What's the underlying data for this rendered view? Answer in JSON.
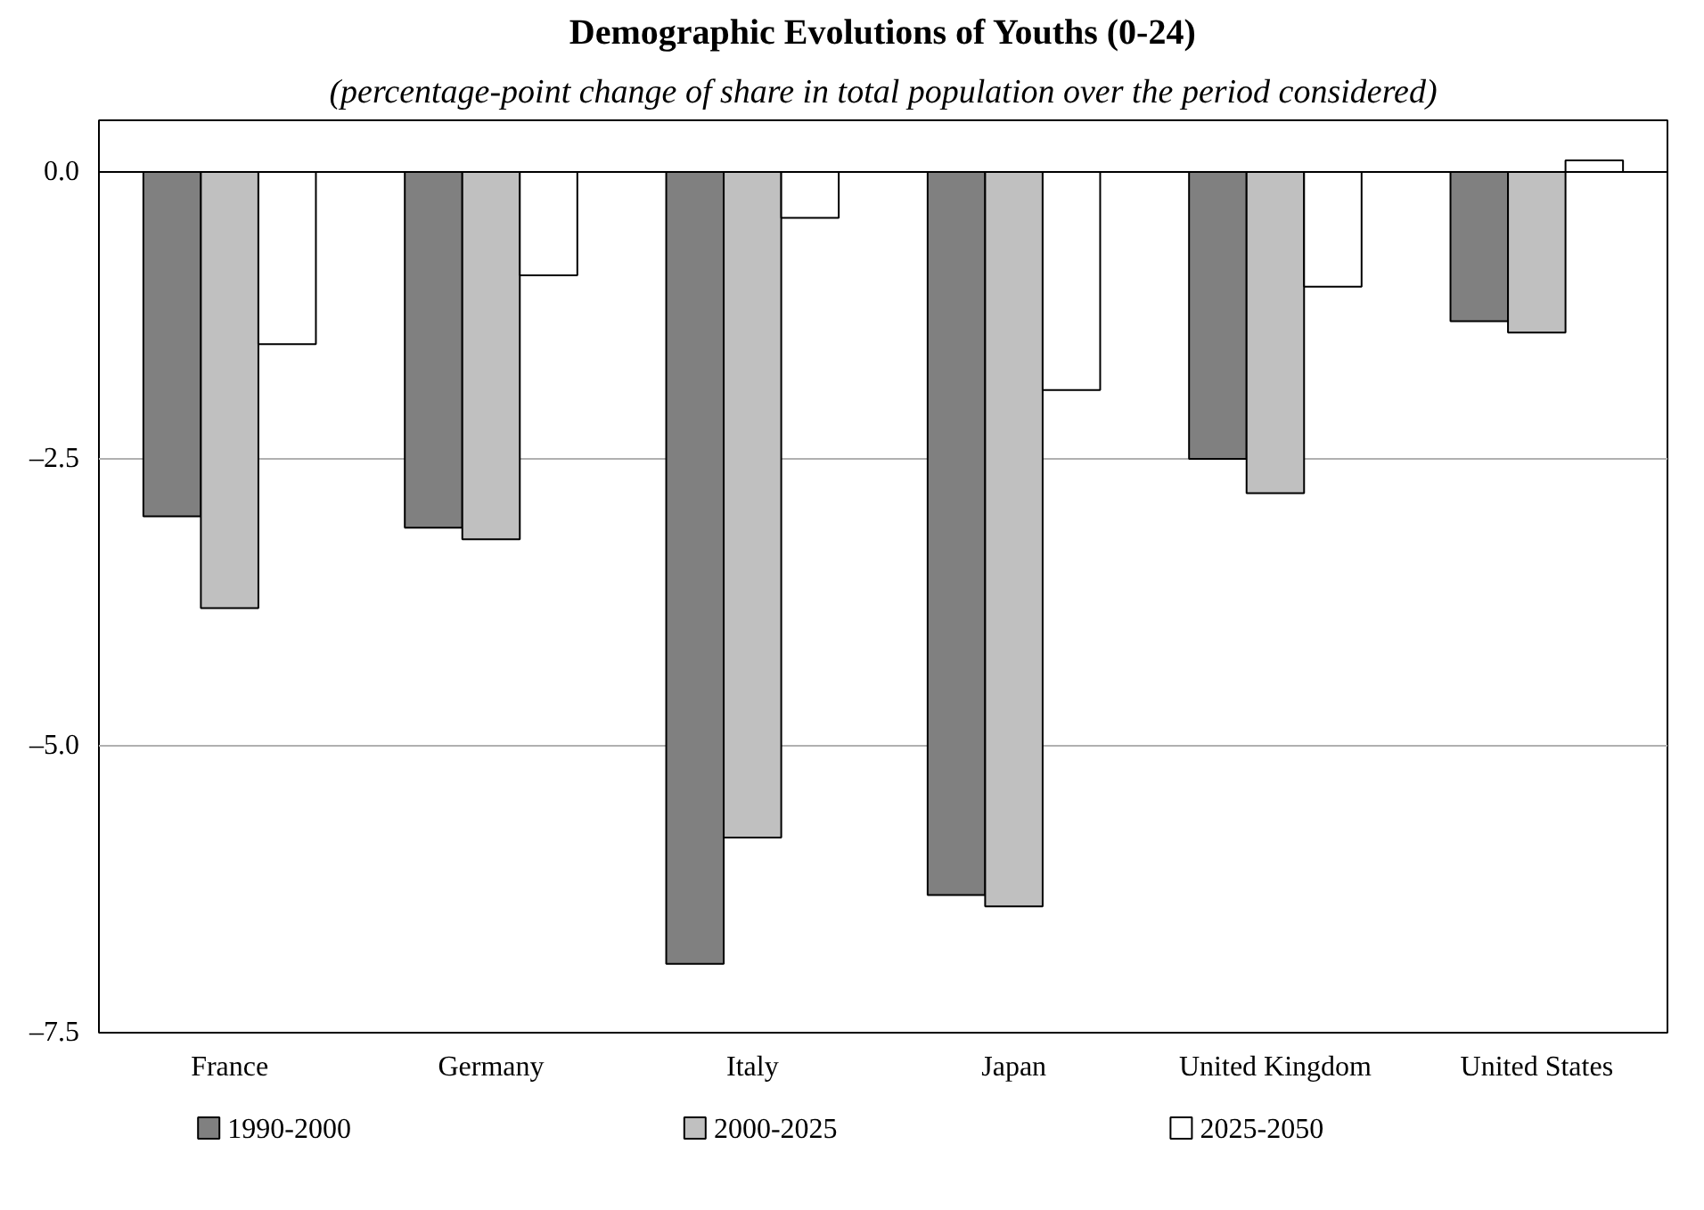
{
  "chart_data": {
    "type": "bar",
    "title": "Demographic Evolutions of Youths (0-24)",
    "subtitle": "(percentage-point change of share in total population over the period considered)",
    "categories": [
      "France",
      "Germany",
      "Italy",
      "Japan",
      "United Kingdom",
      "United States"
    ],
    "series": [
      {
        "name": "1990-2000",
        "color": "#808080",
        "values": [
          -3.0,
          -3.1,
          -6.9,
          -6.3,
          -2.5,
          -1.3
        ]
      },
      {
        "name": "2000-2025",
        "color": "#c0c0c0",
        "values": [
          -3.8,
          -3.2,
          -5.8,
          -6.4,
          -2.8,
          -1.4
        ]
      },
      {
        "name": "2025-2050",
        "color": "#ffffff",
        "values": [
          -1.5,
          -0.9,
          -0.4,
          -1.9,
          -1.0,
          0.1
        ]
      }
    ],
    "ylim": [
      -7.5,
      0.45
    ],
    "yticks": [
      {
        "value": 0,
        "label": "0.0"
      },
      {
        "value": -2.5,
        "label": "–2.5"
      },
      {
        "value": -5,
        "label": "–5.0"
      },
      {
        "value": -7.5,
        "label": "–7.5"
      }
    ],
    "grid": "y",
    "legend": "bottom"
  }
}
